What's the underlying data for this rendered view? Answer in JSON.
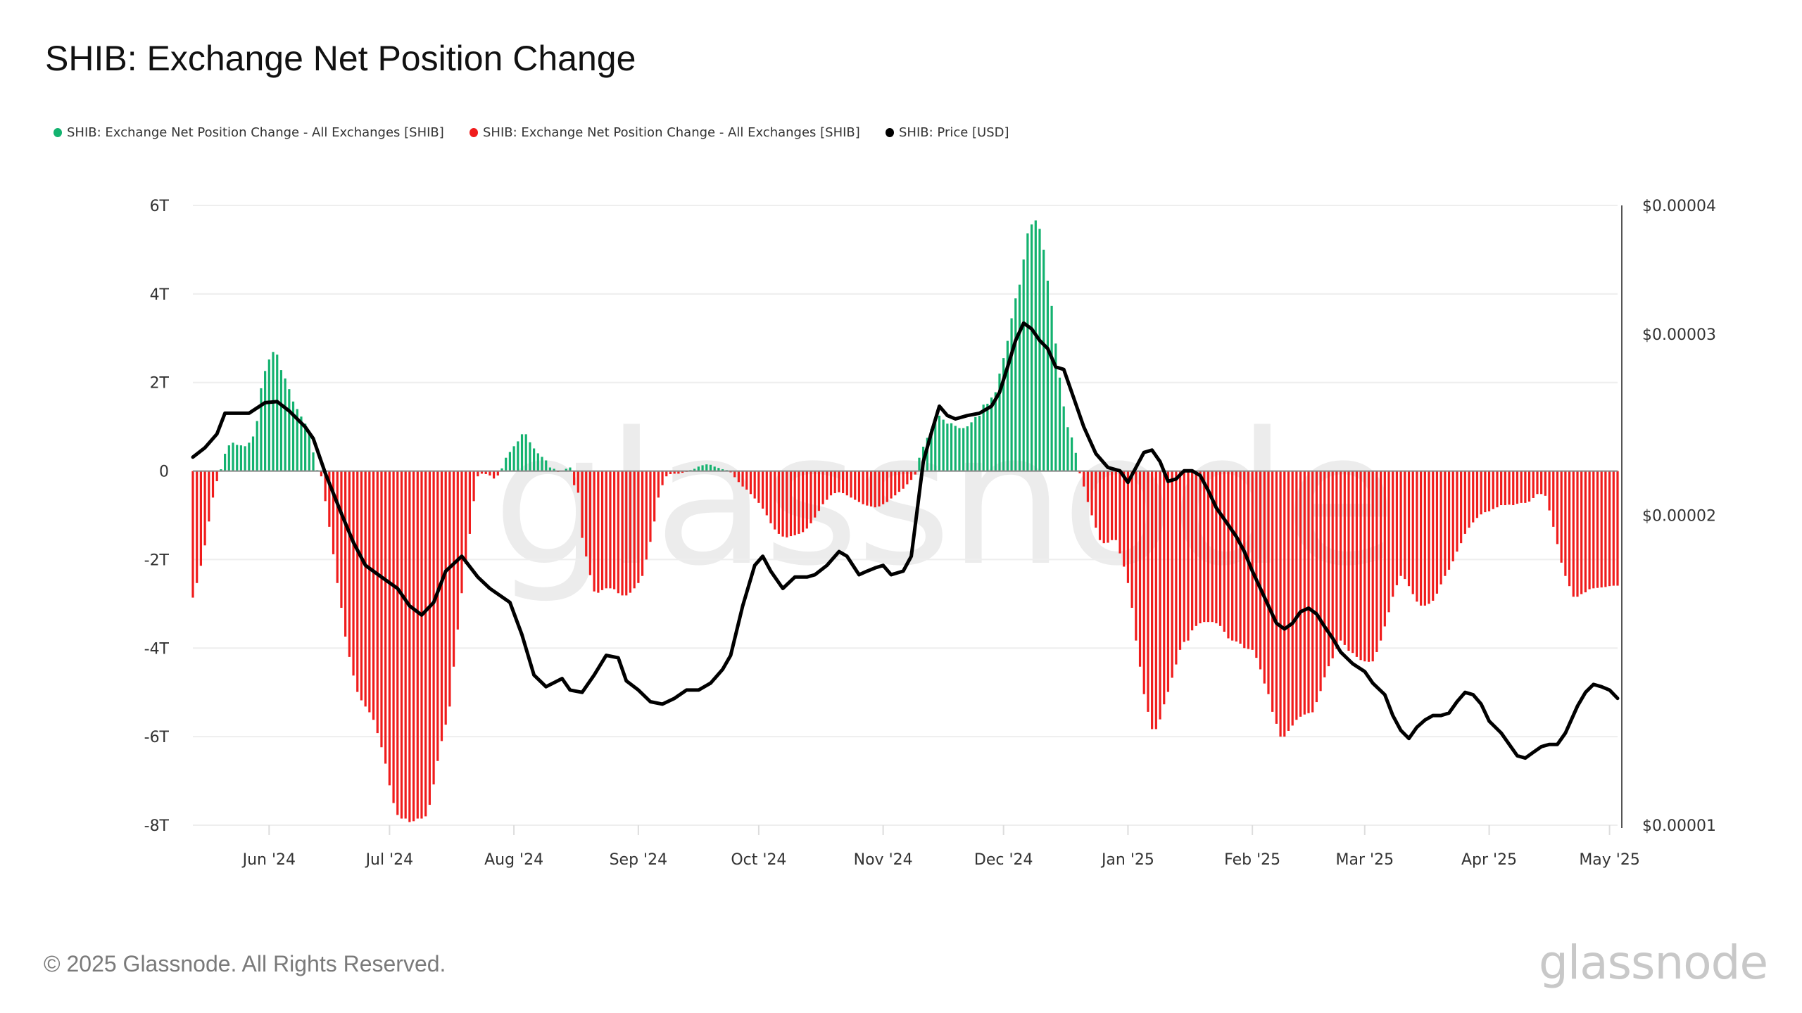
{
  "title": "SHIB: Exchange Net Position Change",
  "legend": [
    {
      "label": "SHIB: Exchange Net Position Change - All Exchanges [SHIB]",
      "color": "#13b26f"
    },
    {
      "label": "SHIB: Exchange Net Position Change - All Exchanges [SHIB]",
      "color": "#f01c1c"
    },
    {
      "label": "SHIB: Price [USD]",
      "color": "#000000"
    }
  ],
  "watermark": "glassnode",
  "footer": {
    "copyright": "© 2025 Glassnode. All Rights Reserved.",
    "logo": "glassnode"
  },
  "chart_data": {
    "type": "bar",
    "title": "SHIB: Exchange Net Position Change",
    "grid": true,
    "legend_position": "top-left",
    "colors": {
      "positive": "#13b26f",
      "negative": "#f01c1c",
      "price": "#000000",
      "grid": "#eeeeee"
    },
    "y_left": {
      "unit": "T",
      "range": [
        -8,
        6
      ],
      "ticks": [
        {
          "v": 6,
          "label": "6T"
        },
        {
          "v": 4,
          "label": "4T"
        },
        {
          "v": 2,
          "label": "2T"
        },
        {
          "v": 0,
          "label": "0"
        },
        {
          "v": -2,
          "label": "-2T"
        },
        {
          "v": -4,
          "label": "-4T"
        },
        {
          "v": -6,
          "label": "-6T"
        },
        {
          "v": -8,
          "label": "-8T"
        }
      ]
    },
    "y_right": {
      "scale": "log",
      "range": [
        1e-05,
        4e-05
      ],
      "ticks": [
        {
          "v": 4e-05,
          "label": "$0.00004"
        },
        {
          "v": 3e-05,
          "label": "$0.00003"
        },
        {
          "v": 2e-05,
          "label": "$0.00002"
        },
        {
          "v": 1e-05,
          "label": "$0.00001"
        }
      ]
    },
    "x_ticks": [
      {
        "date": "2024-06-01",
        "label": "Jun '24"
      },
      {
        "date": "2024-07-01",
        "label": "Jul '24"
      },
      {
        "date": "2024-08-01",
        "label": "Aug '24"
      },
      {
        "date": "2024-09-01",
        "label": "Sep '24"
      },
      {
        "date": "2024-10-01",
        "label": "Oct '24"
      },
      {
        "date": "2024-11-01",
        "label": "Nov '24"
      },
      {
        "date": "2024-12-01",
        "label": "Dec '24"
      },
      {
        "date": "2025-01-01",
        "label": "Jan '25"
      },
      {
        "date": "2025-02-01",
        "label": "Feb '25"
      },
      {
        "date": "2025-03-01",
        "label": "Mar '25"
      },
      {
        "date": "2025-04-01",
        "label": "Apr '25"
      },
      {
        "date": "2025-05-01",
        "label": "May '25"
      }
    ],
    "net_position_change_T": [
      {
        "month": "2024-05",
        "first_day": 13,
        "values": [
          -2.86,
          -2.53,
          -2.14,
          -1.68,
          -1.14,
          -0.6,
          -0.23,
          0.04,
          0.39,
          0.58,
          0.64,
          0.59,
          0.58,
          0.56,
          0.64,
          0.78,
          1.13,
          1.87,
          2.26
        ]
      },
      {
        "month": "2024-06",
        "first_day": 1,
        "values": [
          2.52,
          2.69,
          2.63,
          2.28,
          2.09,
          1.85,
          1.57,
          1.4,
          1.23,
          1.07,
          0.83,
          0.42,
          0.02,
          -0.12,
          -0.68,
          -1.26,
          -1.88,
          -2.53,
          -3.09,
          -3.74,
          -4.2,
          -4.62,
          -4.99,
          -5.18,
          -5.32,
          -5.45,
          -5.62,
          -5.92,
          -6.24,
          -6.61
        ]
      },
      {
        "month": "2024-07",
        "first_day": 1,
        "values": [
          -7.1,
          -7.5,
          -7.77,
          -7.85,
          -7.85,
          -7.93,
          -7.91,
          -7.85,
          -7.85,
          -7.8,
          -7.54,
          -7.08,
          -6.55,
          -6.1,
          -5.73,
          -5.32,
          -4.42,
          -3.58,
          -2.76,
          -2.1,
          -1.42,
          -0.68,
          -0.12,
          -0.06,
          -0.07,
          -0.1,
          -0.17,
          -0.1,
          0.06,
          0.3,
          0.43
        ]
      },
      {
        "month": "2024-08",
        "first_day": 1,
        "values": [
          0.56,
          0.67,
          0.83,
          0.83,
          0.65,
          0.51,
          0.4,
          0.32,
          0.24,
          0.08,
          0.05,
          -0.02,
          0,
          0.05,
          0.08,
          -0.32,
          -0.49,
          -1.51,
          -1.93,
          -2.35,
          -2.72,
          -2.75,
          -2.69,
          -2.65,
          -2.65,
          -2.67,
          -2.76,
          -2.81,
          -2.81,
          -2.75,
          -2.65
        ]
      },
      {
        "month": "2024-09",
        "first_day": 1,
        "values": [
          -2.53,
          -2.37,
          -2.0,
          -1.6,
          -1.14,
          -0.6,
          -0.32,
          -0.12,
          -0.07,
          -0.06,
          -0.06,
          -0.04,
          -0.02,
          0.02,
          0.05,
          0.1,
          0.13,
          0.15,
          0.14,
          0.1,
          0.07,
          0.04,
          0.02,
          -0.03,
          -0.14,
          -0.25,
          -0.35,
          -0.42,
          -0.52,
          -0.62
        ]
      },
      {
        "month": "2024-10",
        "first_day": 1,
        "values": [
          -0.72,
          -0.85,
          -1.0,
          -1.18,
          -1.32,
          -1.42,
          -1.48,
          -1.5,
          -1.47,
          -1.45,
          -1.42,
          -1.38,
          -1.3,
          -1.18,
          -1.05,
          -0.9,
          -0.75,
          -0.65,
          -0.55,
          -0.5,
          -0.48,
          -0.5,
          -0.55,
          -0.6,
          -0.65,
          -0.7,
          -0.75,
          -0.78,
          -0.8,
          -0.82,
          -0.8
        ]
      },
      {
        "month": "2024-11",
        "first_day": 1,
        "values": [
          -0.75,
          -0.7,
          -0.62,
          -0.55,
          -0.47,
          -0.4,
          -0.3,
          -0.2,
          -0.08,
          0.3,
          0.55,
          0.75,
          0.95,
          1.13,
          1.25,
          1.16,
          1.07,
          1.08,
          1.02,
          0.97,
          0.97,
          1.01,
          1.1,
          1.22,
          1.25,
          1.5,
          1.52,
          1.66,
          1.78,
          2.2
        ]
      },
      {
        "month": "2024-12",
        "first_day": 1,
        "values": [
          2.55,
          2.94,
          3.45,
          3.9,
          4.21,
          4.78,
          5.37,
          5.57,
          5.66,
          5.47,
          5.0,
          4.3,
          3.73,
          2.88,
          2.11,
          1.46,
          0.99,
          0.76,
          0.41,
          -0.05,
          -0.35,
          -0.7,
          -1.0,
          -1.28,
          -1.56,
          -1.63,
          -1.62,
          -1.56,
          -1.56,
          -1.86,
          -2.16
        ]
      },
      {
        "month": "2025-01",
        "first_day": 1,
        "values": [
          -2.53,
          -3.09,
          -3.83,
          -4.42,
          -5.04,
          -5.44,
          -5.83,
          -5.83,
          -5.61,
          -5.27,
          -4.99,
          -4.67,
          -4.37,
          -4.04,
          -3.86,
          -3.83,
          -3.6,
          -3.5,
          -3.44,
          -3.41,
          -3.41,
          -3.41,
          -3.44,
          -3.5,
          -3.63,
          -3.78,
          -3.83,
          -3.85,
          -3.9,
          -4.0,
          -4.02
        ]
      },
      {
        "month": "2025-02",
        "first_day": 1,
        "values": [
          -4.04,
          -4.22,
          -4.48,
          -4.8,
          -5.04,
          -5.44,
          -5.71,
          -6.0,
          -6.0,
          -5.87,
          -5.75,
          -5.62,
          -5.55,
          -5.5,
          -5.47,
          -5.45,
          -5.22,
          -4.97,
          -4.66,
          -4.41,
          -4.23,
          -4.02,
          -3.83,
          -3.93,
          -4.06,
          -4.11,
          -4.2,
          -4.27
        ]
      },
      {
        "month": "2025-03",
        "first_day": 1,
        "values": [
          -4.3,
          -4.31,
          -4.3,
          -4.09,
          -3.83,
          -3.51,
          -3.19,
          -2.84,
          -2.58,
          -2.37,
          -2.44,
          -2.6,
          -2.78,
          -2.95,
          -3.04,
          -3.04,
          -3.0,
          -2.93,
          -2.77,
          -2.56,
          -2.37,
          -2.23,
          -2.04,
          -1.82,
          -1.63,
          -1.42,
          -1.28,
          -1.16,
          -1.06,
          -0.98,
          -0.93
        ]
      },
      {
        "month": "2025-04",
        "first_day": 1,
        "values": [
          -0.91,
          -0.86,
          -0.82,
          -0.77,
          -0.77,
          -0.76,
          -0.77,
          -0.74,
          -0.72,
          -0.72,
          -0.69,
          -0.61,
          -0.52,
          -0.52,
          -0.56,
          -0.89,
          -1.26,
          -1.65,
          -2.07,
          -2.37,
          -2.6,
          -2.84,
          -2.84,
          -2.78,
          -2.74,
          -2.67,
          -2.65,
          -2.64,
          -2.63,
          -2.62
        ]
      },
      {
        "month": "2025-05",
        "first_day": 1,
        "values": [
          -2.6,
          -2.59,
          -2.59
        ]
      }
    ],
    "price_usd": [
      [
        "2024-05-13",
        2.278e-05
      ],
      [
        "2024-05-16",
        2.326e-05
      ],
      [
        "2024-05-19",
        2.399e-05
      ],
      [
        "2024-05-21",
        2.513e-05
      ],
      [
        "2024-05-25",
        2.513e-05
      ],
      [
        "2024-05-27",
        2.513e-05
      ],
      [
        "2024-05-31",
        2.573e-05
      ],
      [
        "2024-06-03",
        2.579e-05
      ],
      [
        "2024-06-06",
        2.526e-05
      ],
      [
        "2024-06-10",
        2.437e-05
      ],
      [
        "2024-06-12",
        2.375e-05
      ],
      [
        "2024-06-15",
        2.198e-05
      ],
      [
        "2024-06-19",
        2.008e-05
      ],
      [
        "2024-06-22",
        1.882e-05
      ],
      [
        "2024-06-25",
        1.788e-05
      ],
      [
        "2024-06-29",
        1.742e-05
      ],
      [
        "2024-07-03",
        1.698e-05
      ],
      [
        "2024-07-06",
        1.633e-05
      ],
      [
        "2024-07-09",
        1.6e-05
      ],
      [
        "2024-07-12",
        1.646e-05
      ],
      [
        "2024-07-15",
        1.765e-05
      ],
      [
        "2024-07-19",
        1.825e-05
      ],
      [
        "2024-07-23",
        1.742e-05
      ],
      [
        "2024-07-26",
        1.698e-05
      ],
      [
        "2024-07-31",
        1.646e-05
      ],
      [
        "2024-08-03",
        1.531e-05
      ],
      [
        "2024-08-06",
        1.399e-05
      ],
      [
        "2024-08-09",
        1.363e-05
      ],
      [
        "2024-08-13",
        1.388e-05
      ],
      [
        "2024-08-15",
        1.353e-05
      ],
      [
        "2024-08-18",
        1.346e-05
      ],
      [
        "2024-08-21",
        1.399e-05
      ],
      [
        "2024-08-24",
        1.462e-05
      ],
      [
        "2024-08-27",
        1.454e-05
      ],
      [
        "2024-08-29",
        1.381e-05
      ],
      [
        "2024-09-01",
        1.353e-05
      ],
      [
        "2024-09-04",
        1.318e-05
      ],
      [
        "2024-09-07",
        1.311e-05
      ],
      [
        "2024-09-10",
        1.328e-05
      ],
      [
        "2024-09-13",
        1.353e-05
      ],
      [
        "2024-09-16",
        1.353e-05
      ],
      [
        "2024-09-19",
        1.374e-05
      ],
      [
        "2024-09-22",
        1.417e-05
      ],
      [
        "2024-09-24",
        1.462e-05
      ],
      [
        "2024-09-27",
        1.633e-05
      ],
      [
        "2024-09-30",
        1.788e-05
      ],
      [
        "2024-10-02",
        1.825e-05
      ],
      [
        "2024-10-04",
        1.765e-05
      ],
      [
        "2024-10-07",
        1.698e-05
      ],
      [
        "2024-10-10",
        1.742e-05
      ],
      [
        "2024-10-13",
        1.742e-05
      ],
      [
        "2024-10-15",
        1.751e-05
      ],
      [
        "2024-10-18",
        1.788e-05
      ],
      [
        "2024-10-21",
        1.844e-05
      ],
      [
        "2024-10-23",
        1.825e-05
      ],
      [
        "2024-10-26",
        1.751e-05
      ],
      [
        "2024-10-28",
        1.765e-05
      ],
      [
        "2024-10-30",
        1.778e-05
      ],
      [
        "2024-11-01",
        1.788e-05
      ],
      [
        "2024-11-03",
        1.751e-05
      ],
      [
        "2024-11-06",
        1.765e-05
      ],
      [
        "2024-11-08",
        1.825e-05
      ],
      [
        "2024-11-09",
        1.957e-05
      ],
      [
        "2024-11-11",
        2.255e-05
      ],
      [
        "2024-11-13",
        2.405e-05
      ],
      [
        "2024-11-15",
        2.553e-05
      ],
      [
        "2024-11-17",
        2.5e-05
      ],
      [
        "2024-11-19",
        2.481e-05
      ],
      [
        "2024-11-22",
        2.5e-05
      ],
      [
        "2024-11-25",
        2.513e-05
      ],
      [
        "2024-11-28",
        2.553e-05
      ],
      [
        "2024-11-30",
        2.633e-05
      ],
      [
        "2024-12-02",
        2.787e-05
      ],
      [
        "2024-12-04",
        2.957e-05
      ],
      [
        "2024-12-06",
        3.074e-05
      ],
      [
        "2024-12-08",
        3.035e-05
      ],
      [
        "2024-12-10",
        2.957e-05
      ],
      [
        "2024-12-12",
        2.904e-05
      ],
      [
        "2024-12-14",
        2.787e-05
      ],
      [
        "2024-12-16",
        2.772e-05
      ],
      [
        "2024-12-18",
        2.633e-05
      ],
      [
        "2024-12-21",
        2.437e-05
      ],
      [
        "2024-12-24",
        2.296e-05
      ],
      [
        "2024-12-27",
        2.226e-05
      ],
      [
        "2024-12-30",
        2.209e-05
      ],
      [
        "2025-01-01",
        2.153e-05
      ],
      [
        "2025-01-03",
        2.226e-05
      ],
      [
        "2025-01-05",
        2.302e-05
      ],
      [
        "2025-01-07",
        2.314e-05
      ],
      [
        "2025-01-09",
        2.255e-05
      ],
      [
        "2025-01-11",
        2.158e-05
      ],
      [
        "2025-01-13",
        2.169e-05
      ],
      [
        "2025-01-15",
        2.209e-05
      ],
      [
        "2025-01-17",
        2.209e-05
      ],
      [
        "2025-01-19",
        2.186e-05
      ],
      [
        "2025-01-21",
        2.114e-05
      ],
      [
        "2025-01-23",
        2.034e-05
      ],
      [
        "2025-01-26",
        1.957e-05
      ],
      [
        "2025-01-28",
        1.907e-05
      ],
      [
        "2025-01-30",
        1.844e-05
      ],
      [
        "2025-02-01",
        1.765e-05
      ],
      [
        "2025-02-03",
        1.698e-05
      ],
      [
        "2025-02-05",
        1.633e-05
      ],
      [
        "2025-02-07",
        1.571e-05
      ],
      [
        "2025-02-09",
        1.551e-05
      ],
      [
        "2025-02-11",
        1.571e-05
      ],
      [
        "2025-02-13",
        1.612e-05
      ],
      [
        "2025-02-15",
        1.625e-05
      ],
      [
        "2025-02-17",
        1.604e-05
      ],
      [
        "2025-02-19",
        1.559e-05
      ],
      [
        "2025-02-21",
        1.519e-05
      ],
      [
        "2025-02-23",
        1.473e-05
      ],
      [
        "2025-02-26",
        1.435e-05
      ],
      [
        "2025-03-01",
        1.41e-05
      ],
      [
        "2025-03-03",
        1.374e-05
      ],
      [
        "2025-03-06",
        1.339e-05
      ],
      [
        "2025-03-08",
        1.278e-05
      ],
      [
        "2025-03-10",
        1.236e-05
      ],
      [
        "2025-03-12",
        1.214e-05
      ],
      [
        "2025-03-14",
        1.245e-05
      ],
      [
        "2025-03-16",
        1.265e-05
      ],
      [
        "2025-03-18",
        1.278e-05
      ],
      [
        "2025-03-20",
        1.278e-05
      ],
      [
        "2025-03-22",
        1.285e-05
      ],
      [
        "2025-03-24",
        1.318e-05
      ],
      [
        "2025-03-26",
        1.346e-05
      ],
      [
        "2025-03-28",
        1.339e-05
      ],
      [
        "2025-03-30",
        1.311e-05
      ],
      [
        "2025-04-01",
        1.262e-05
      ],
      [
        "2025-04-04",
        1.229e-05
      ],
      [
        "2025-04-06",
        1.198e-05
      ],
      [
        "2025-04-08",
        1.168e-05
      ],
      [
        "2025-04-10",
        1.162e-05
      ],
      [
        "2025-04-12",
        1.177e-05
      ],
      [
        "2025-04-14",
        1.192e-05
      ],
      [
        "2025-04-16",
        1.198e-05
      ],
      [
        "2025-04-18",
        1.198e-05
      ],
      [
        "2025-04-20",
        1.229e-05
      ],
      [
        "2025-04-23",
        1.305e-05
      ],
      [
        "2025-04-25",
        1.346e-05
      ],
      [
        "2025-04-27",
        1.37e-05
      ],
      [
        "2025-04-29",
        1.363e-05
      ],
      [
        "2025-05-01",
        1.353e-05
      ],
      [
        "2025-05-03",
        1.328e-05
      ]
    ]
  }
}
